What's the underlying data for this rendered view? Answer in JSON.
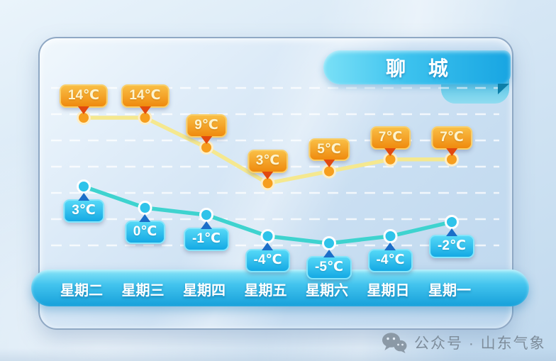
{
  "banner": {
    "city": "聊 城"
  },
  "footer": {
    "account_label": "公众号 · 山东气象"
  },
  "chart_data": {
    "type": "line",
    "title": "聊 城",
    "unit": "℃",
    "categories": [
      "星期二",
      "星期三",
      "星期四",
      "星期五",
      "星期六",
      "星期日",
      "星期一"
    ],
    "series": [
      {
        "name": "high-temperature",
        "values": [
          14,
          14,
          9,
          3,
          5,
          7,
          7
        ],
        "point_labels": [
          "14℃",
          "14℃",
          "9℃",
          "3℃",
          "5℃",
          "7℃",
          "7℃"
        ],
        "badge_side": "above",
        "line_color": "#f5e88f",
        "point_color": "#f69e1e",
        "point_ring": "#fdeec6",
        "badge_bg_top": "#f9be45",
        "badge_bg_bottom": "#ef8a0e",
        "badge_border": "#f8cf6b",
        "badge_text": "#fdf4cf",
        "pointer_color": "#e2490f"
      },
      {
        "name": "low-temperature",
        "values": [
          3,
          0,
          -1,
          -4,
          -5,
          -4,
          -2
        ],
        "point_labels": [
          "3℃",
          "0℃",
          "-1℃",
          "-4℃",
          "-5℃",
          "-4℃",
          "-2℃"
        ],
        "badge_side": "below",
        "line_color": "#3ed3cf",
        "point_color": "#2fc3ea",
        "point_ring": "#ffffff",
        "badge_bg_top": "#55d8f7",
        "badge_bg_bottom": "#14a9e4",
        "badge_border": "#85e4fa",
        "badge_text": "#ffffff",
        "pointer_color": "#1b6ec8"
      }
    ],
    "grid": "horizontal-dashed-white",
    "legend": "none",
    "x_axis": "weekday bar at bottom",
    "y_axis": "none (values labeled at each point)"
  }
}
